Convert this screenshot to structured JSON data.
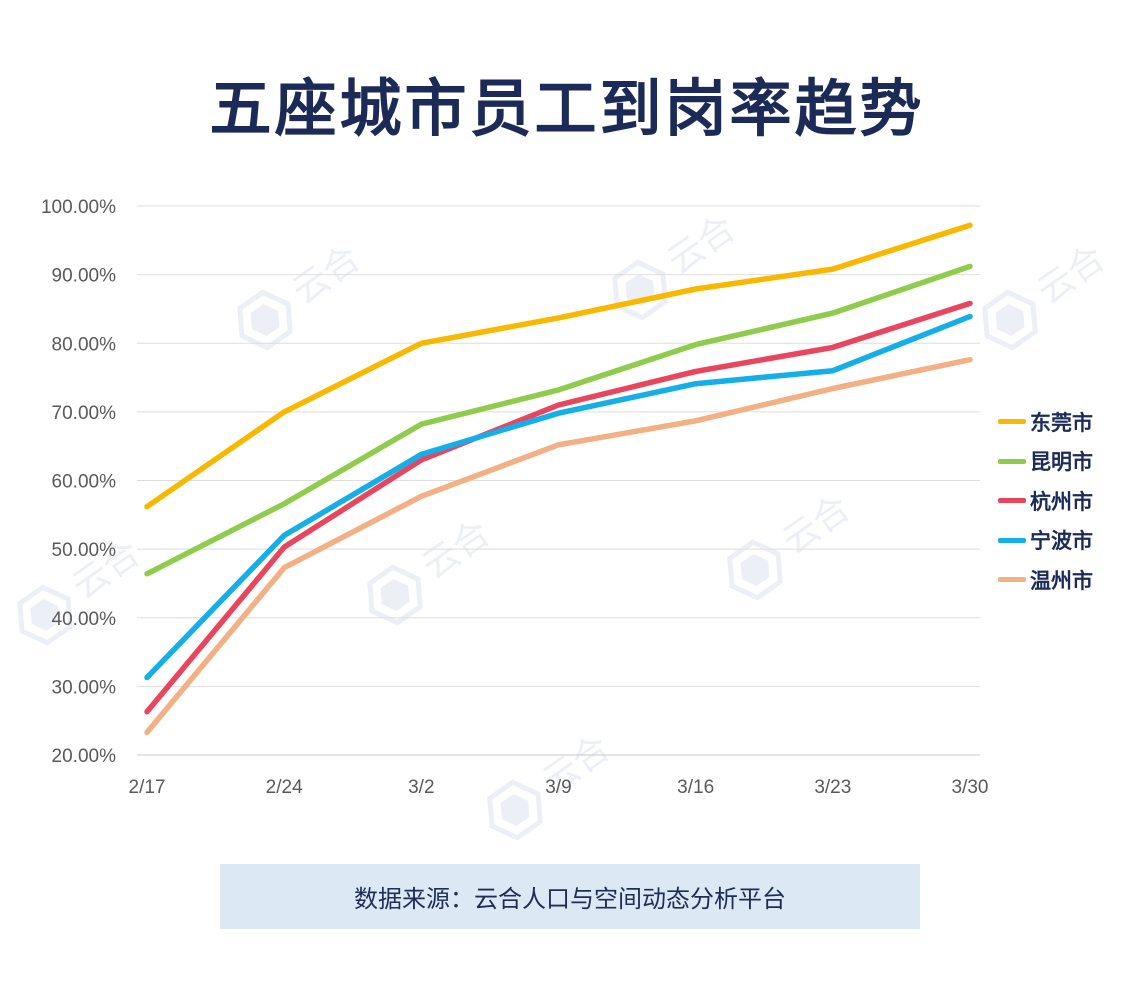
{
  "title": "五座城市员工到岗率趋势",
  "source": "数据来源：云合人口与空间动态分析平台",
  "watermark": "云合",
  "chart_data": {
    "type": "line",
    "categories": [
      "2/17",
      "2/24",
      "3/2",
      "3/9",
      "3/16",
      "3/23",
      "3/30"
    ],
    "y_ticks": [
      "20.00%",
      "30.00%",
      "40.00%",
      "50.00%",
      "60.00%",
      "70.00%",
      "80.00%",
      "90.00%",
      "100.00%"
    ],
    "ylim": [
      20,
      100
    ],
    "grid": true,
    "legend_position": "right",
    "series": [
      {
        "name": "东莞市",
        "color": "#f9b800",
        "values": [
          56.2,
          70.0,
          80.0,
          83.7,
          87.9,
          90.8,
          97.2
        ]
      },
      {
        "name": "昆明市",
        "color": "#8fcc4b",
        "values": [
          46.4,
          56.6,
          68.2,
          73.2,
          79.8,
          84.4,
          91.2
        ]
      },
      {
        "name": "杭州市",
        "color": "#e8455e",
        "values": [
          26.3,
          50.3,
          63.0,
          71.0,
          75.9,
          79.4,
          85.8
        ]
      },
      {
        "name": "宁波市",
        "color": "#14aee8",
        "values": [
          31.3,
          52.0,
          63.8,
          69.8,
          74.1,
          76.0,
          83.9
        ]
      },
      {
        "name": "温州市",
        "color": "#f2b084",
        "values": [
          23.3,
          47.3,
          57.7,
          65.2,
          68.7,
          73.4,
          77.6
        ]
      }
    ]
  }
}
